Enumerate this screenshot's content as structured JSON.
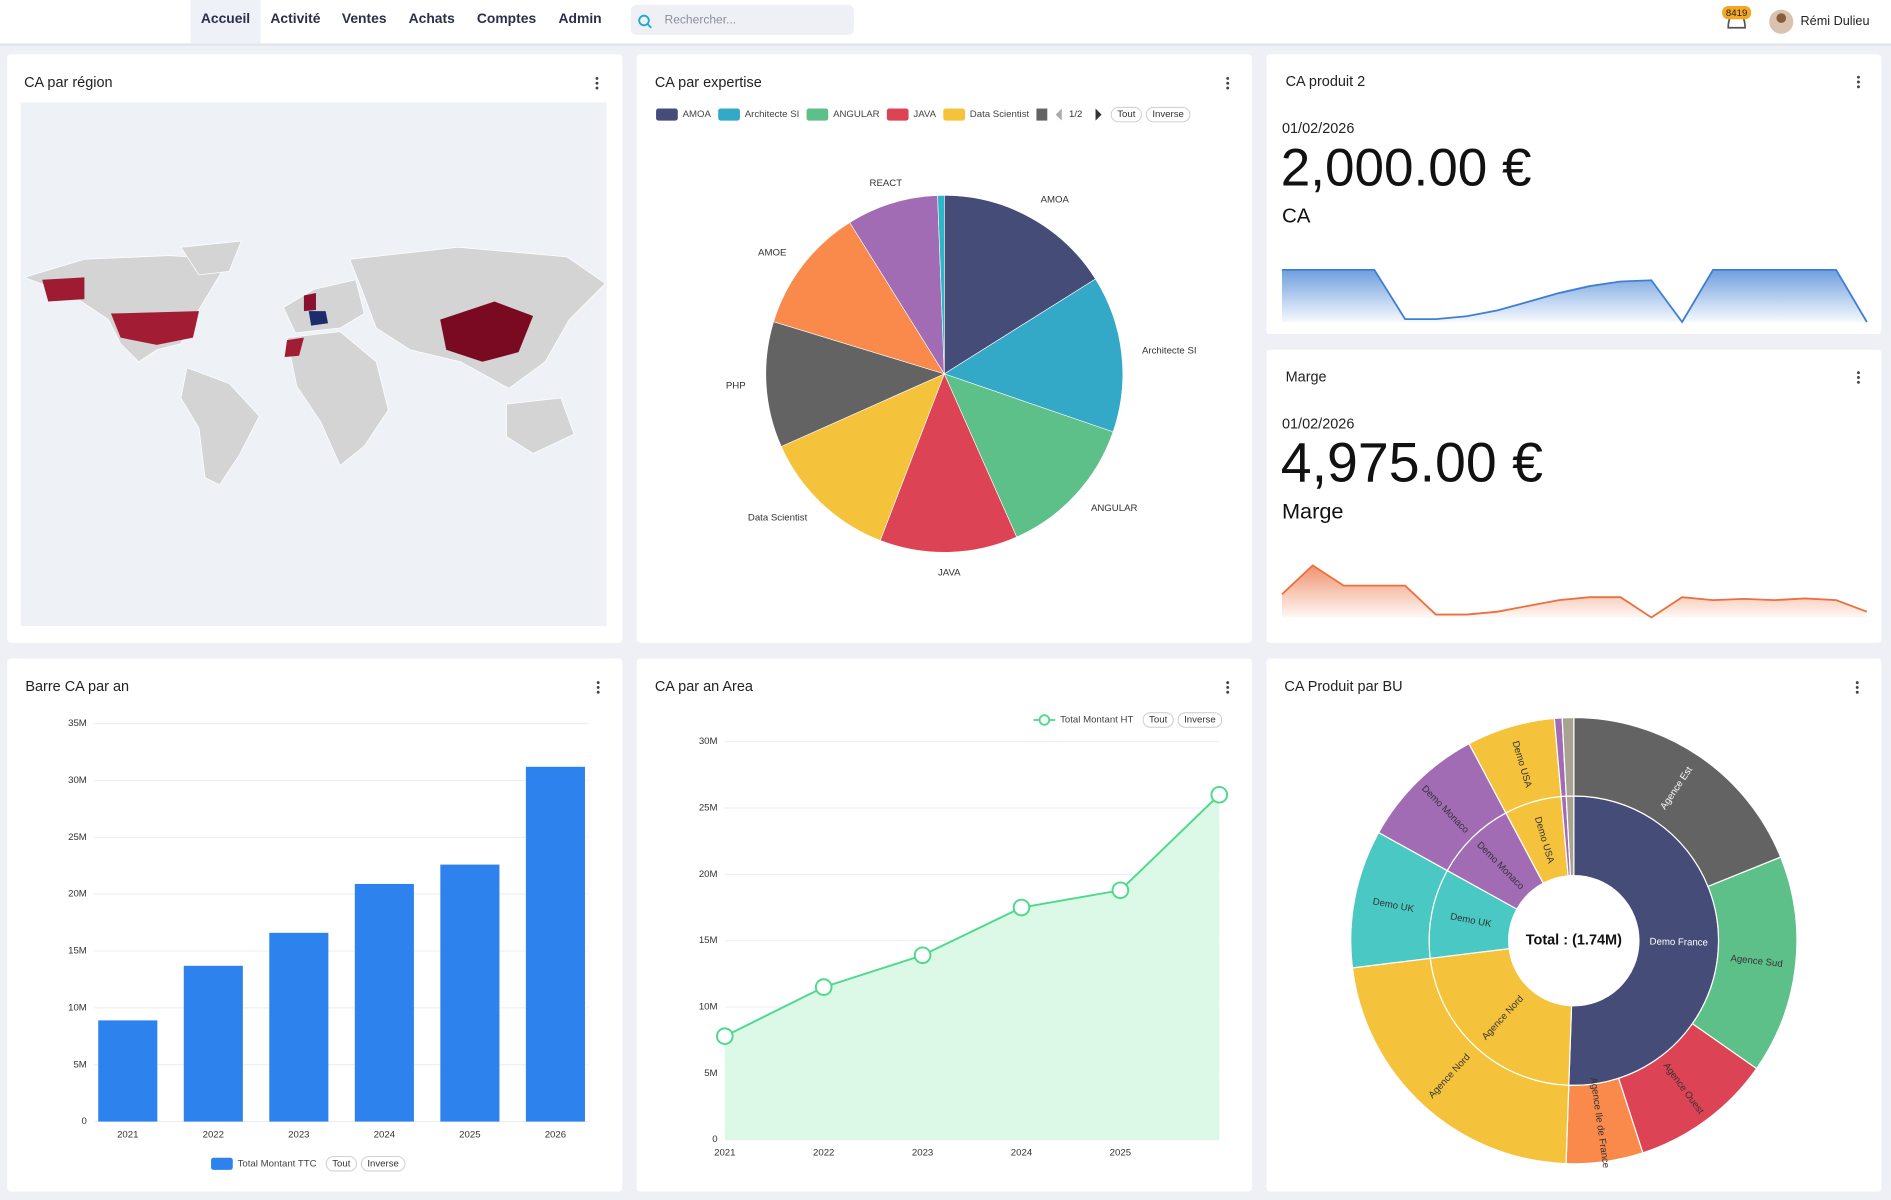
{
  "nav": {
    "items": [
      "Accueil",
      "Activité",
      "Ventes",
      "Achats",
      "Comptes",
      "Admin"
    ],
    "active": 0
  },
  "search_placeholder": "Rechercher...",
  "notifications": 8419,
  "user": "Rémi Dulieu",
  "map": {
    "title": "CA par région"
  },
  "kpis": [
    {
      "title": "CA produit 2",
      "date": "01/02/2026",
      "value": "2,000.00 €",
      "label": "CA",
      "spark": {
        "color": "#3f7fd3",
        "values": [
          0.9,
          0.9,
          0.9,
          0.9,
          0.05,
          0.05,
          0.1,
          0.2,
          0.35,
          0.5,
          0.62,
          0.7,
          0.72,
          0.0,
          0.9,
          0.9,
          0.9,
          0.9,
          0.9,
          0.0
        ]
      }
    },
    {
      "title": "Marge",
      "date": "01/02/2026",
      "value": "4,975.00 €",
      "label": "Marge",
      "spark": {
        "color": "#ec6f3e",
        "values": [
          0.4,
          0.9,
          0.55,
          0.55,
          0.55,
          0.05,
          0.05,
          0.1,
          0.2,
          0.3,
          0.35,
          0.35,
          0.0,
          0.35,
          0.3,
          0.32,
          0.3,
          0.33,
          0.3,
          0.1
        ]
      }
    }
  ],
  "chart_data": [
    {
      "type": "pie",
      "title": "CA par expertise",
      "categories": [
        "AMOA",
        "Architecte SI",
        "ANGULAR",
        "JAVA",
        "Data Scientist",
        "PHP",
        "AMOE",
        "REACT",
        null
      ],
      "values": [
        16.1,
        14.2,
        13.1,
        12.5,
        12.5,
        11.4,
        11.4,
        8.3,
        0.6
      ],
      "colors": [
        "#454c78",
        "#33a8c7",
        "#5ec089",
        "#dc4455",
        "#f5c33b",
        "#636363",
        "#f98a4b",
        "#a26cb5",
        "#2bb7c7"
      ],
      "legend_page": "1/2",
      "legend_buttons": [
        "Tout",
        "Inverse"
      ]
    },
    {
      "type": "bar",
      "title": "Barre CA par an",
      "categories": [
        "2021",
        "2022",
        "2023",
        "2024",
        "2025",
        "2026"
      ],
      "series": [
        {
          "name": "Total Montant TTC",
          "color": "#2d82ee",
          "values": [
            8900000,
            13700000,
            16600000,
            20900000,
            22600000,
            31200000
          ]
        }
      ],
      "ylim": [
        0,
        35000000
      ],
      "yticks": [
        0,
        {
          "value": 5000000,
          "label": "5M"
        },
        {
          "value": 10000000,
          "label": "10M"
        },
        {
          "value": 15000000,
          "label": "15M"
        },
        {
          "value": 20000000,
          "label": "20M"
        },
        {
          "value": 25000000,
          "label": "25M"
        },
        {
          "value": 30000000,
          "label": "30M"
        },
        {
          "value": 35000000,
          "label": "35M"
        }
      ],
      "grid": true,
      "legend_buttons": [
        "Tout",
        "Inverse"
      ]
    },
    {
      "type": "area",
      "title": "CA par an Area",
      "categories": [
        "2021",
        "2022",
        "2023",
        "2024",
        "2025",
        null
      ],
      "series": [
        {
          "name": "Total Montant HT",
          "color": "#4cd98a",
          "fill": "#dcf8e7",
          "values": [
            7800000,
            11500000,
            13900000,
            17500000,
            18800000,
            26000000
          ]
        }
      ],
      "ylim": [
        0,
        30000000
      ],
      "yticks": [
        0,
        {
          "value": 5000000,
          "label": "5M"
        },
        {
          "value": 10000000,
          "label": "10M"
        },
        {
          "value": 15000000,
          "label": "15M"
        },
        {
          "value": 20000000,
          "label": "20M"
        },
        {
          "value": 25000000,
          "label": "25M"
        },
        {
          "value": 30000000,
          "label": "30M"
        }
      ],
      "grid": true,
      "legend_buttons": [
        "Tout",
        "Inverse"
      ]
    },
    {
      "type": "sunburst",
      "title": "CA Produit par BU",
      "total_label": "Total : (1.74M)",
      "nodes": [
        {
          "name": "Demo France",
          "color": "#454c78",
          "children": [
            {
              "name": "Agence Est",
              "color": "#636363",
              "value": 328700
            },
            {
              "name": "Agence Sud",
              "color": "#5ec089",
              "value": 275500
            },
            {
              "name": "Agence Ouest",
              "color": "#dc4455",
              "value": 178800
            },
            {
              "name": "Agence Ile de France",
              "color": "#f98a4b",
              "value": 96700
            }
          ]
        },
        {
          "name": "Agence Nord",
          "color": "#f5c33b",
          "children": [
            {
              "name": "Agence Nord",
              "color": "#f5c33b",
              "value": 391500
            }
          ]
        },
        {
          "name": "Demo UK",
          "color": "#4ac8c3",
          "children": [
            {
              "name": "Demo UK",
              "color": "#4ac8c3",
              "value": 174000
            }
          ]
        },
        {
          "name": "Demo Monaco",
          "color": "#a26cb5",
          "children": [
            {
              "name": "Demo Monaco",
              "color": "#a26cb5",
              "value": 159500
            }
          ]
        },
        {
          "name": "Demo USA",
          "color": "#f5c33b",
          "children": [
            {
              "name": "Demo USA",
              "color": "#f5c33b",
              "value": 111200
            }
          ]
        },
        {
          "name": null,
          "color": "#a26cb5",
          "children": [
            {
              "name": null,
              "color": "#a26cb5",
              "value": 9700
            }
          ]
        },
        {
          "name": null,
          "color": "#a8a290",
          "children": [
            {
              "name": null,
              "color": "#a8a290",
              "value": 14500
            }
          ]
        }
      ]
    }
  ]
}
